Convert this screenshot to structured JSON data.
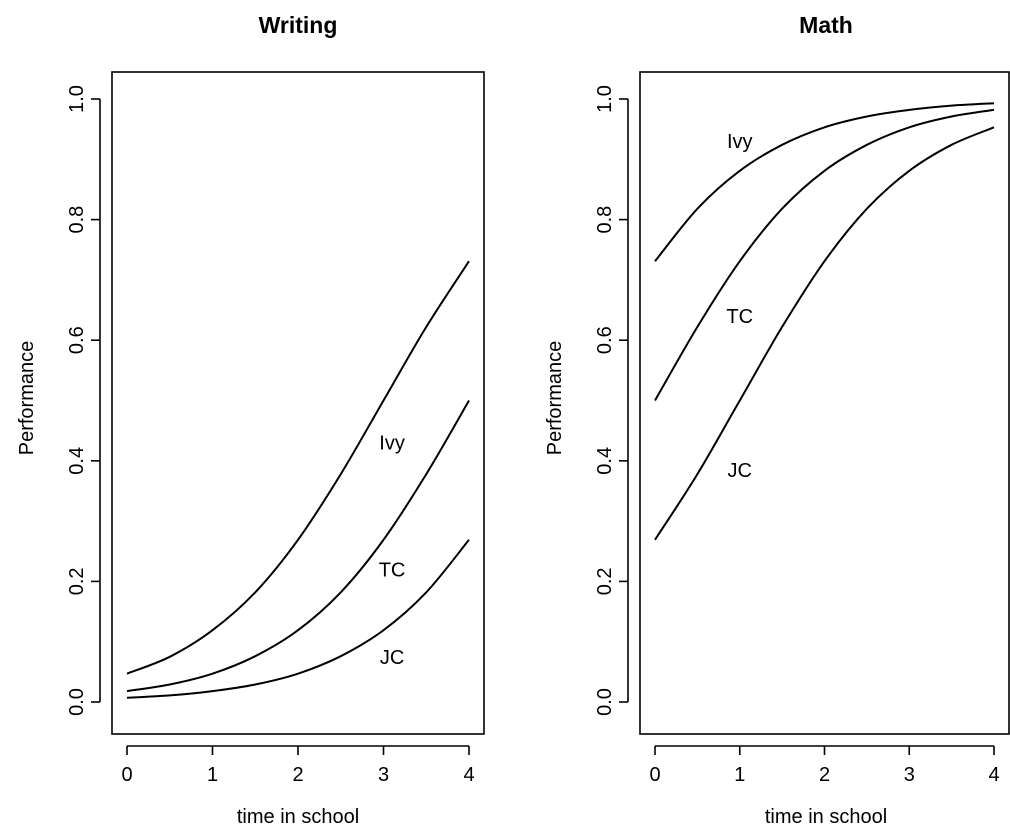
{
  "chart_data": [
    {
      "type": "line",
      "title": "Writing",
      "xlabel": "time in school",
      "ylabel": "Performance",
      "xlim": [
        0,
        4
      ],
      "ylim": [
        0,
        1
      ],
      "xticks": [
        "0",
        "1",
        "2",
        "3",
        "4"
      ],
      "yticks": [
        "0.0",
        "0.2",
        "0.4",
        "0.6",
        "0.8",
        "1.0"
      ],
      "grid": false,
      "x": [
        0,
        0.5,
        1,
        1.5,
        2,
        2.5,
        3,
        3.5,
        4
      ],
      "series": [
        {
          "name": "Ivy",
          "values": [
            0.047,
            0.075,
            0.119,
            0.182,
            0.269,
            0.378,
            0.5,
            0.622,
            0.731
          ],
          "label_at": [
            3.1,
            0.43
          ]
        },
        {
          "name": "TC",
          "values": [
            0.018,
            0.029,
            0.047,
            0.076,
            0.119,
            0.182,
            0.269,
            0.378,
            0.5
          ],
          "label_at": [
            3.1,
            0.22
          ]
        },
        {
          "name": "JC",
          "values": [
            0.007,
            0.011,
            0.018,
            0.029,
            0.047,
            0.076,
            0.119,
            0.182,
            0.269
          ],
          "label_at": [
            3.1,
            0.075
          ]
        }
      ]
    },
    {
      "type": "line",
      "title": "Math",
      "xlabel": "time in school",
      "ylabel": "Performance",
      "xlim": [
        0,
        4
      ],
      "ylim": [
        0,
        1
      ],
      "xticks": [
        "0",
        "1",
        "2",
        "3",
        "4"
      ],
      "yticks": [
        "0.0",
        "0.2",
        "0.4",
        "0.6",
        "0.8",
        "1.0"
      ],
      "grid": false,
      "x": [
        0,
        0.5,
        1,
        1.5,
        2,
        2.5,
        3,
        3.5,
        4
      ],
      "series": [
        {
          "name": "Ivy",
          "values": [
            0.731,
            0.818,
            0.881,
            0.924,
            0.953,
            0.971,
            0.982,
            0.989,
            0.993
          ],
          "label_at": [
            1.0,
            0.93
          ]
        },
        {
          "name": "TC",
          "values": [
            0.5,
            0.622,
            0.731,
            0.818,
            0.881,
            0.924,
            0.953,
            0.971,
            0.982
          ],
          "label_at": [
            1.0,
            0.64
          ]
        },
        {
          "name": "JC",
          "values": [
            0.269,
            0.378,
            0.5,
            0.622,
            0.731,
            0.818,
            0.881,
            0.924,
            0.953
          ],
          "label_at": [
            1.0,
            0.385
          ]
        }
      ]
    }
  ]
}
